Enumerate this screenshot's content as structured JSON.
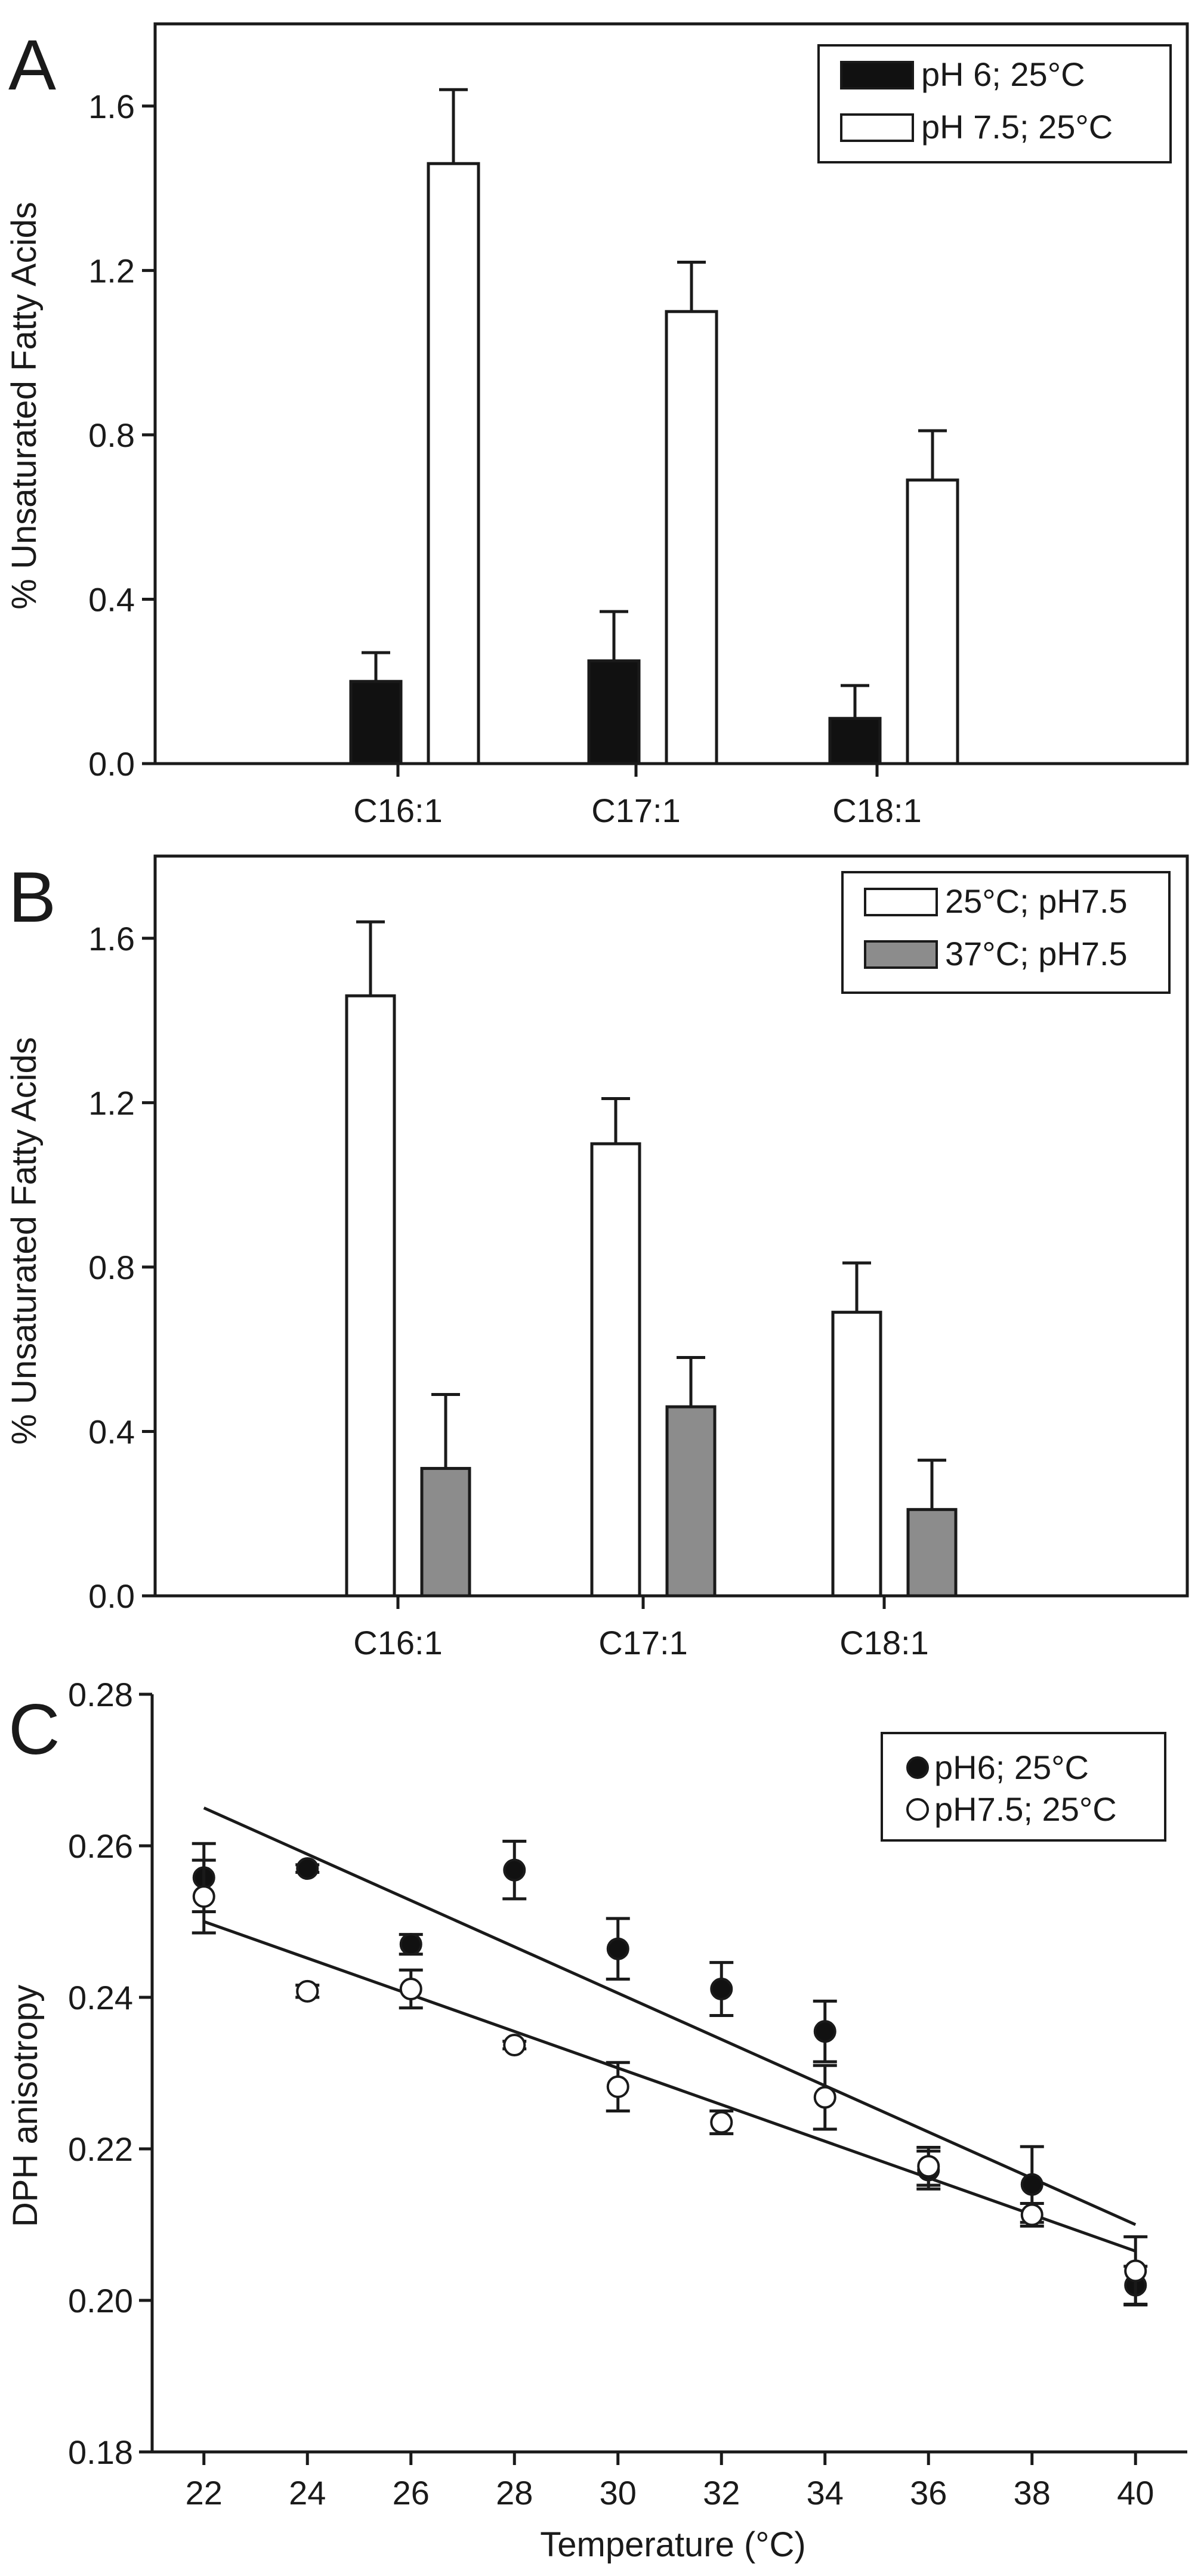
{
  "chart_data": [
    {
      "panel": "A",
      "type": "bar",
      "categories": [
        "C16:1",
        "C17:1",
        "C18:1"
      ],
      "ylabel": "% Unsaturated Fatty Acids",
      "xlabel": "",
      "ylim": [
        0,
        1.8
      ],
      "yticks": [
        "0.0",
        "0.4",
        "0.8",
        "1.2",
        "1.6"
      ],
      "legend_position": "top-right",
      "series": [
        {
          "name": "pH 6; 25°C",
          "color": "#111111",
          "values": [
            0.2,
            0.25,
            0.11
          ],
          "errors": [
            0.07,
            0.12,
            0.08
          ]
        },
        {
          "name": "pH 7.5; 25°C",
          "color": "#ffffff",
          "values": [
            1.46,
            1.1,
            0.69
          ],
          "errors": [
            0.18,
            0.12,
            0.12
          ]
        }
      ]
    },
    {
      "panel": "B",
      "type": "bar",
      "categories": [
        "C16:1",
        "C17:1",
        "C18:1"
      ],
      "ylabel": "% Unsaturated Fatty Acids",
      "xlabel": "",
      "ylim": [
        0,
        1.8
      ],
      "yticks": [
        "0.0",
        "0.4",
        "0.8",
        "1.2",
        "1.6"
      ],
      "legend_position": "top-right",
      "series": [
        {
          "name": "25°C; pH7.5",
          "color": "#ffffff",
          "values": [
            1.46,
            1.1,
            0.69
          ],
          "errors": [
            0.18,
            0.11,
            0.12
          ]
        },
        {
          "name": "37°C; pH7.5",
          "color": "#8c8c8c",
          "values": [
            0.31,
            0.46,
            0.21
          ],
          "errors": [
            0.18,
            0.12,
            0.12
          ]
        }
      ]
    },
    {
      "panel": "C",
      "type": "scatter",
      "xlabel": "Temperature (°C)",
      "ylabel": "DPH anisotropy",
      "xlim": [
        21,
        41
      ],
      "ylim": [
        0.18,
        0.28
      ],
      "xticks": [
        "22",
        "24",
        "26",
        "28",
        "30",
        "32",
        "34",
        "36",
        "38",
        "40"
      ],
      "yticks": [
        "0.18",
        "0.20",
        "0.22",
        "0.24",
        "0.26",
        "0.28"
      ],
      "legend_position": "top-right",
      "series": [
        {
          "name": "pH6; 25°C",
          "marker": "filled-circle",
          "x": [
            22,
            24,
            26,
            28,
            30,
            32,
            34,
            36,
            38,
            40
          ],
          "y": [
            0.2558,
            0.257,
            0.247,
            0.2568,
            0.2464,
            0.2411,
            0.2355,
            0.2172,
            0.2153,
            0.202
          ],
          "errors": [
            0.0045,
            0.0005,
            0.0013,
            0.0038,
            0.004,
            0.0035,
            0.004,
            0.0025,
            0.005,
            0.0025
          ],
          "fit": {
            "x": [
              22,
              40
            ],
            "y": [
              0.265,
              0.21
            ]
          }
        },
        {
          "name": "pH7.5; 25°C",
          "marker": "open-circle",
          "x": [
            22,
            24,
            26,
            28,
            30,
            32,
            34,
            36,
            38,
            40
          ],
          "y": [
            0.2533,
            0.2408,
            0.2411,
            0.2337,
            0.2282,
            0.2235,
            0.2268,
            0.2177,
            0.2113,
            0.2039
          ],
          "errors": [
            0.0048,
            0.0008,
            0.0025,
            0.0005,
            0.0032,
            0.0015,
            0.0042,
            0.0025,
            0.0015,
            0.0045
          ],
          "fit": {
            "x": [
              22,
              40
            ],
            "y": [
              0.25,
              0.2065
            ]
          }
        }
      ]
    }
  ]
}
